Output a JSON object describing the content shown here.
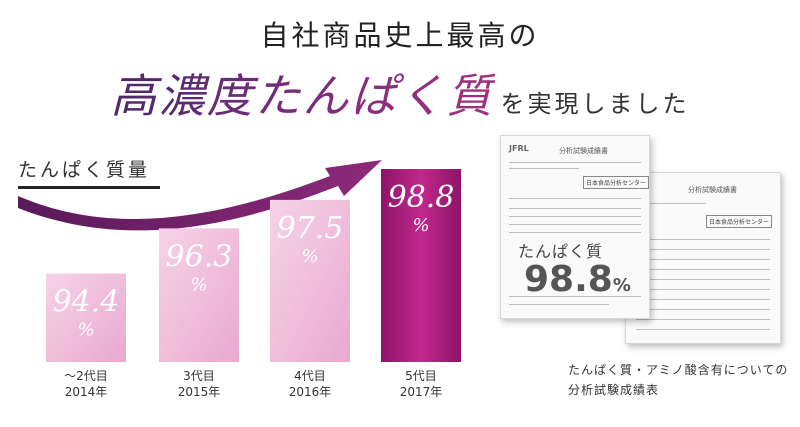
{
  "header": {
    "line1": "自社商品史上最高の",
    "line2_em": "高濃度たんぱく質",
    "line2_rest": "を実現しました"
  },
  "chart_label": "たんぱく質量",
  "chart_data": {
    "type": "bar",
    "title": "たんぱく質量",
    "categories": [
      "～2代目 2014年",
      "3代目 2015年",
      "4代目 2016年",
      "5代目 2017年"
    ],
    "category_lines": [
      [
        "～2代目",
        "2014年"
      ],
      [
        "3代目",
        "2015年"
      ],
      [
        "4代目",
        "2016年"
      ],
      [
        "5代目",
        "2017年"
      ]
    ],
    "values": [
      94.4,
      96.3,
      97.5,
      98.8
    ],
    "value_labels": [
      "94.4",
      "96.3",
      "97.5",
      "98.8"
    ],
    "unit": "%",
    "colors": {
      "bar_light": "#f0c2dc",
      "bar_mid": "#e8a8cd",
      "bar_highlight": "#b01c7e",
      "arrow": "#6a1e66"
    }
  },
  "documents": {
    "doc1_logo": "JFRL",
    "doc1_title": "分析試験成績書",
    "doc2_title": "分析試験成績書",
    "stamp": "日本食品分析センター",
    "overlay_label": "たんぱく質",
    "overlay_value": "98.8",
    "overlay_unit": "%"
  },
  "caption": {
    "line1": "たんぱく質・アミノ酸含有についての",
    "line2": "分析試験成績表"
  }
}
